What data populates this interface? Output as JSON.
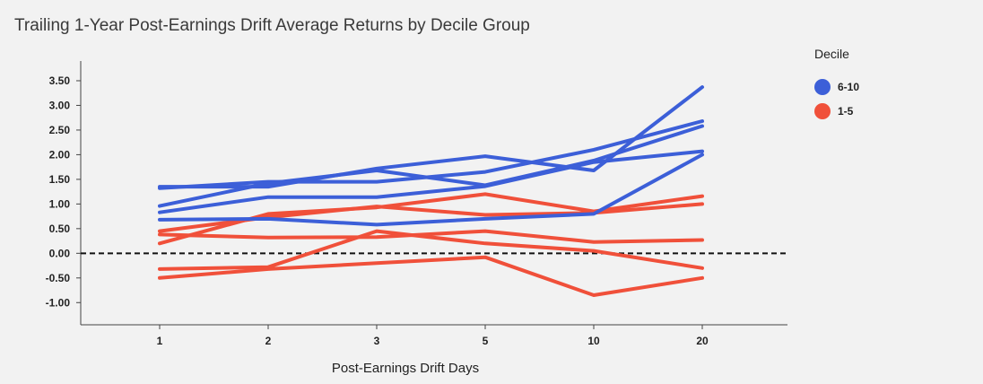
{
  "chart_data": {
    "type": "line",
    "title": "Trailing 1-Year Post-Earnings Drift Average Returns by Decile Group",
    "xlabel": "Post-Earnings Drift Days",
    "ylabel": "",
    "categories": [
      "1",
      "2",
      "3",
      "5",
      "10",
      "20"
    ],
    "y_ticks": [
      "3.50",
      "3.00",
      "2.50",
      "2.00",
      "1.50",
      "1.00",
      "0.50",
      "0.00",
      "-0.50",
      "-1.00"
    ],
    "ylim": [
      -1.45,
      3.9
    ],
    "zero_line": true,
    "grid": false,
    "legend": {
      "title": "Decile",
      "position": "top-right",
      "entries": [
        {
          "label": "6-10",
          "color": "#3c5fd8"
        },
        {
          "label": "1-5",
          "color": "#f0503a"
        }
      ]
    },
    "series": [
      {
        "group": "6-10",
        "color": "#3c5fd8",
        "values": [
          1.35,
          1.35,
          1.72,
          1.97,
          1.68,
          3.37
        ]
      },
      {
        "group": "6-10",
        "color": "#3c5fd8",
        "values": [
          1.32,
          1.45,
          1.45,
          1.65,
          2.1,
          2.68
        ]
      },
      {
        "group": "6-10",
        "color": "#3c5fd8",
        "values": [
          0.96,
          1.42,
          1.68,
          1.38,
          1.88,
          2.58
        ]
      },
      {
        "group": "6-10",
        "color": "#3c5fd8",
        "values": [
          0.83,
          1.14,
          1.14,
          1.36,
          1.85,
          2.07
        ]
      },
      {
        "group": "6-10",
        "color": "#3c5fd8",
        "values": [
          0.68,
          0.7,
          0.58,
          0.7,
          0.8,
          2.0
        ]
      },
      {
        "group": "1-5",
        "color": "#f0503a",
        "values": [
          0.2,
          0.8,
          0.93,
          1.2,
          0.85,
          1.16
        ]
      },
      {
        "group": "1-5",
        "color": "#f0503a",
        "values": [
          0.45,
          0.73,
          0.95,
          0.78,
          0.82,
          1.0
        ]
      },
      {
        "group": "1-5",
        "color": "#f0503a",
        "values": [
          0.38,
          0.32,
          0.33,
          0.45,
          0.23,
          0.27
        ]
      },
      {
        "group": "1-5",
        "color": "#f0503a",
        "values": [
          -0.32,
          -0.28,
          0.45,
          0.2,
          0.05,
          -0.3
        ]
      },
      {
        "group": "1-5",
        "color": "#f0503a",
        "values": [
          -0.5,
          -0.32,
          -0.2,
          -0.08,
          -0.85,
          -0.5
        ]
      }
    ]
  }
}
